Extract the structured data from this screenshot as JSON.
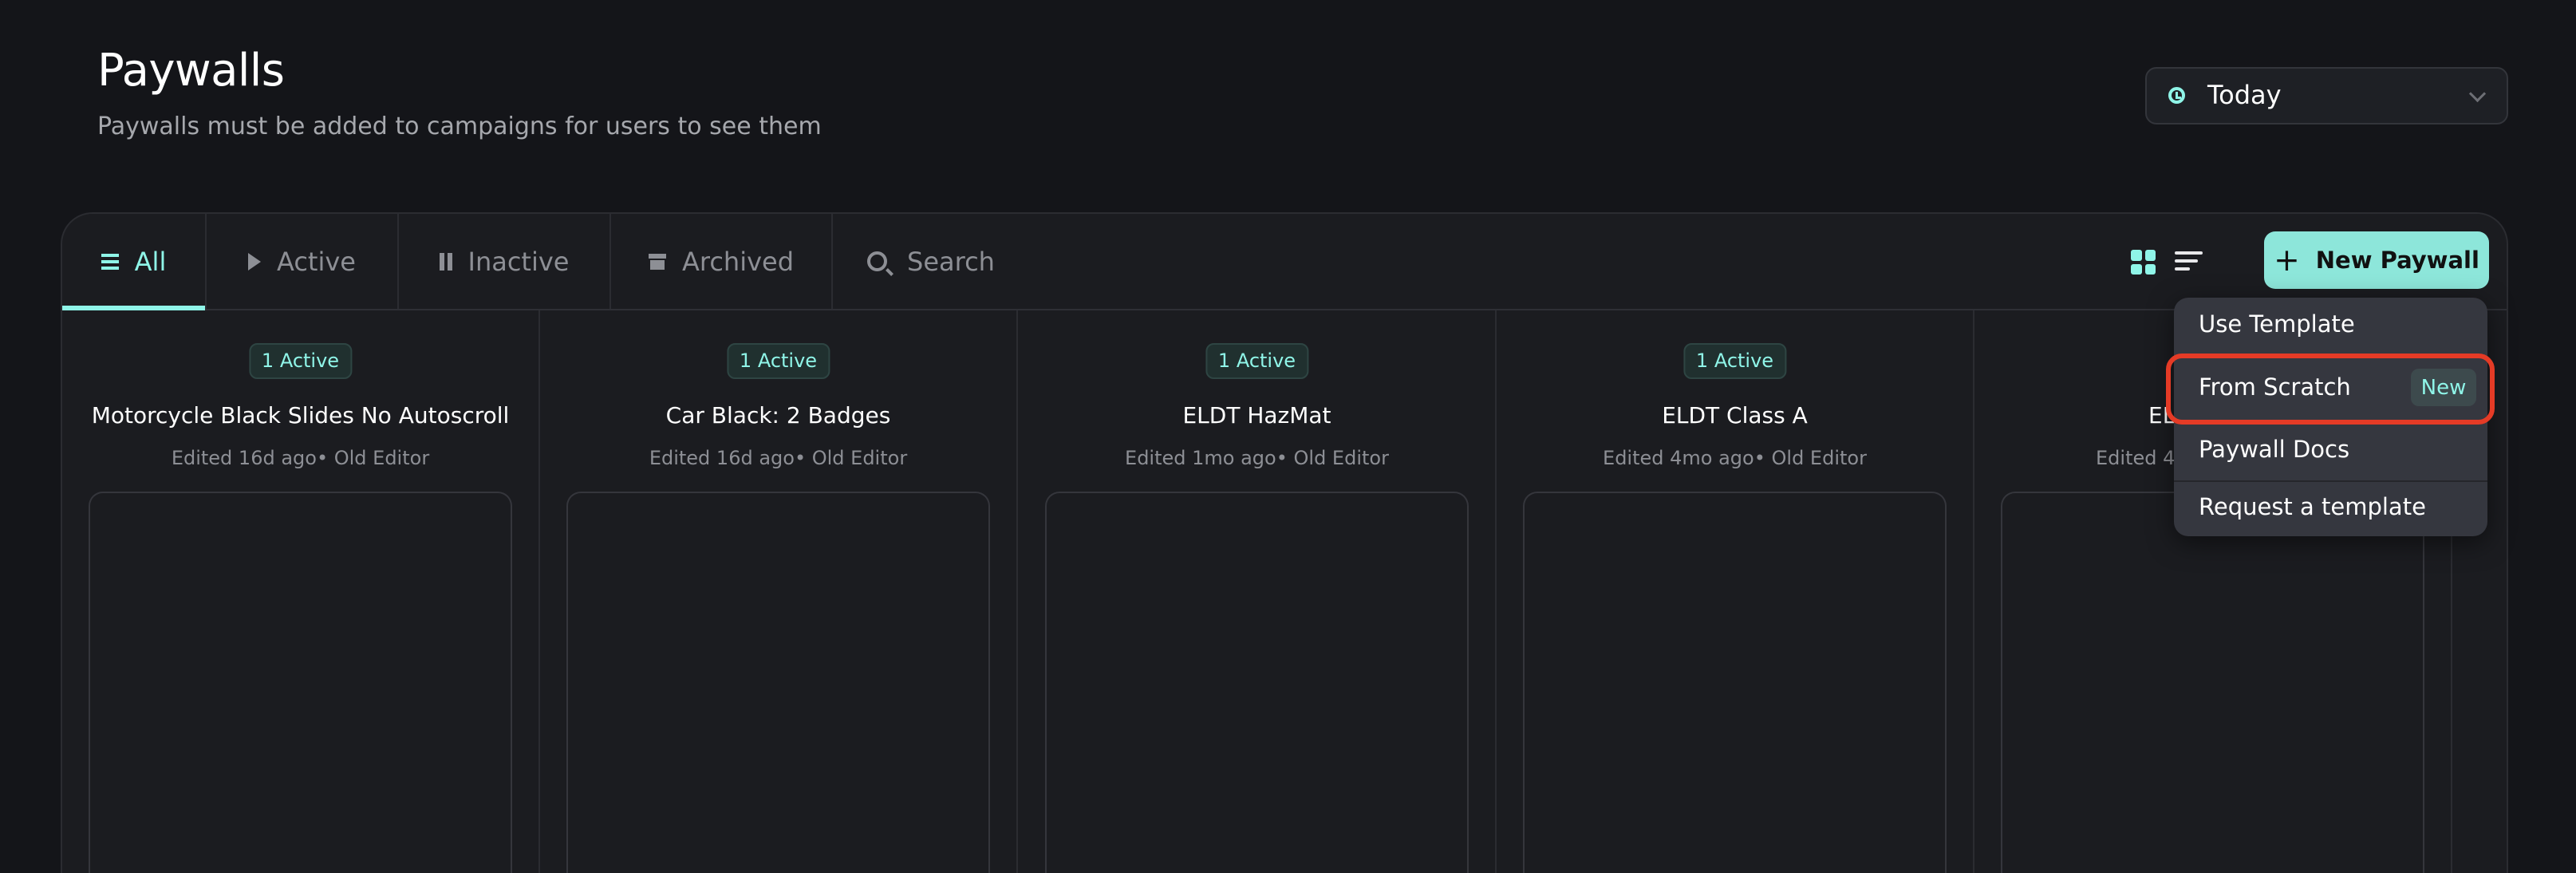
{
  "header": {
    "title": "Paywalls",
    "subtitle": "Paywalls must be added to campaigns for users to see them"
  },
  "date_range": {
    "value": "Today",
    "icon": "clock-icon"
  },
  "tabs": [
    {
      "label": "All",
      "icon": "list-icon",
      "active": true
    },
    {
      "label": "Active",
      "icon": "play-icon",
      "active": false
    },
    {
      "label": "Inactive",
      "icon": "pause-icon",
      "active": false
    },
    {
      "label": "Archived",
      "icon": "archive-icon",
      "active": false
    }
  ],
  "search": {
    "placeholder": "Search"
  },
  "toolbar": {
    "new_paywall_label": "New Paywall",
    "view_mode": "grid"
  },
  "menu": {
    "items": [
      {
        "label": "Use Template"
      },
      {
        "label": "From Scratch",
        "tag": "New",
        "highlighted": true
      },
      {
        "label": "Paywall Docs"
      },
      {
        "label": "Request a template"
      }
    ]
  },
  "cards": [
    {
      "badge": "1 Active",
      "title": "Motorcycle Black Slides No Autoscroll",
      "edited": "Edited 16d ago• Old Editor"
    },
    {
      "badge": "1 Active",
      "title": "Car Black: 2 Badges",
      "edited": "Edited 16d ago• Old Editor"
    },
    {
      "badge": "1 Active",
      "title": "ELDT HazMat",
      "edited": "Edited 1mo ago• Old Editor"
    },
    {
      "badge": "1 Active",
      "title": "ELDT Class A",
      "edited": "Edited 4mo ago• Old Editor"
    },
    {
      "title": "EL",
      "edited": "Edited 4"
    }
  ],
  "colors": {
    "accent": "#8ff5e8",
    "button": "#8de6da",
    "highlight": "#e53b26",
    "background": "#141519"
  }
}
